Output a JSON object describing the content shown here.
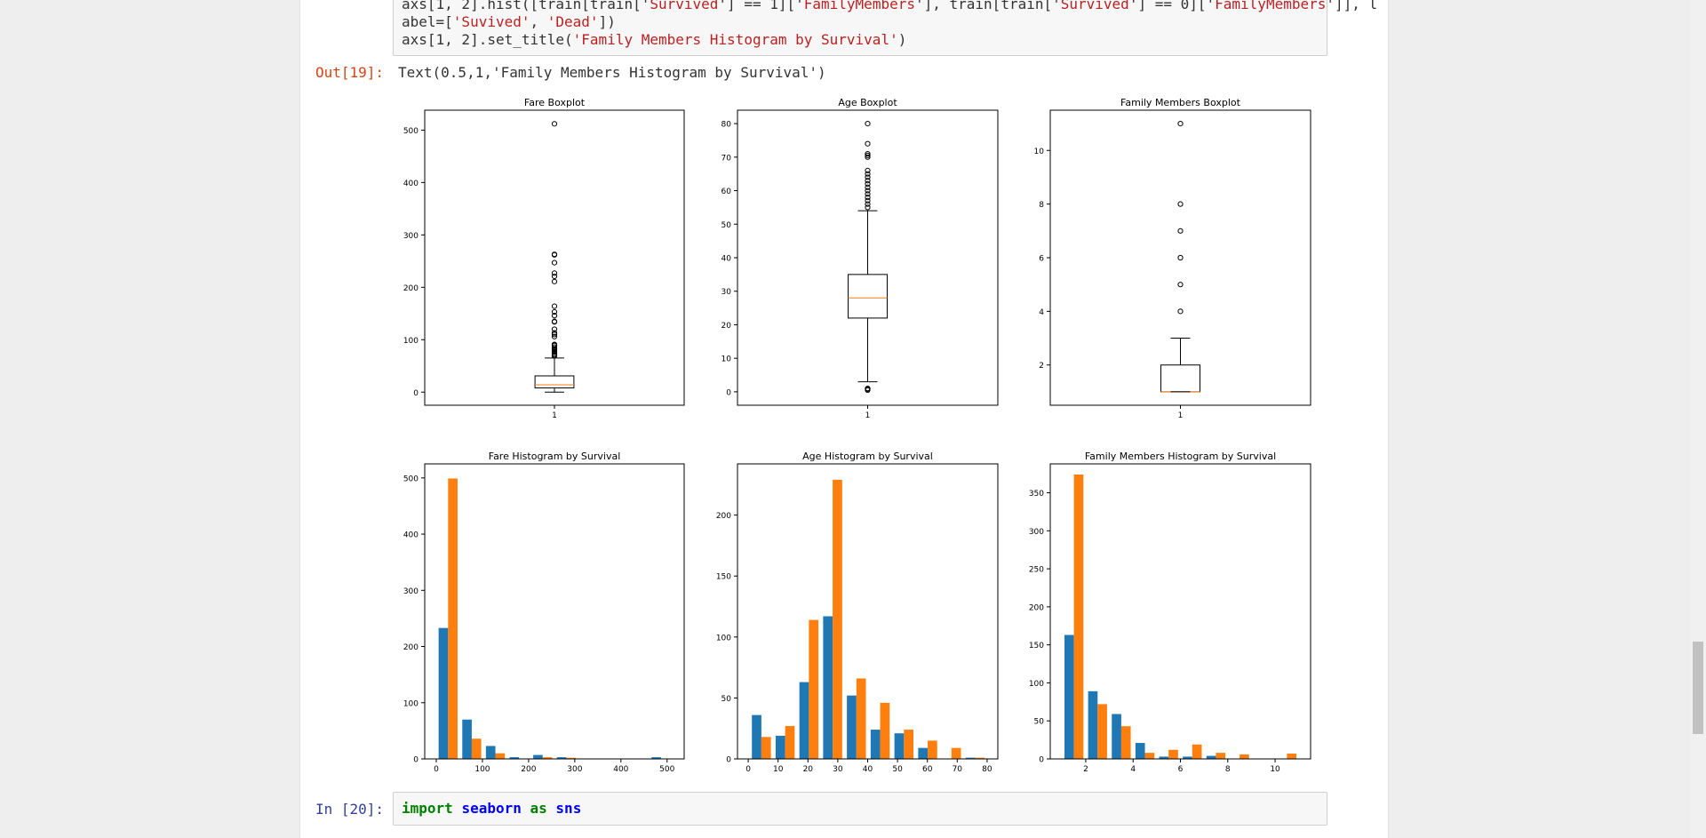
{
  "cell19": {
    "code_lines": [
      {
        "parts": [
          [
            "axs[1, 2].hist([train[train['",
            "plain"
          ],
          [
            "Survived",
            "str"
          ],
          [
            "'] == 1]['",
            "plain"
          ],
          [
            "FamilyMembers",
            "str"
          ],
          [
            "'], train[train['",
            "plain"
          ],
          [
            "Survived",
            "str"
          ],
          [
            "'] == 0]['",
            "plain"
          ],
          [
            "FamilyMembers",
            "str"
          ],
          [
            "']], l",
            "plain"
          ]
        ]
      },
      {
        "parts": [
          [
            "abel=[",
            "plain"
          ],
          [
            "'Suvived'",
            "str"
          ],
          [
            ", ",
            "plain"
          ],
          [
            "'Dead'",
            "str"
          ],
          [
            "])",
            "plain"
          ]
        ]
      },
      {
        "parts": [
          [
            "axs[1, 2].set_title(",
            "plain"
          ],
          [
            "'Family Members Histogram by Survival'",
            "str"
          ],
          [
            ")",
            "plain"
          ]
        ]
      }
    ],
    "out_prompt": "Out[19]:",
    "out_text": "Text(0.5,1,'Family Members Histogram by Survival')"
  },
  "cell20": {
    "in_prompt": "In  [20]:",
    "code_parts": [
      [
        "import",
        "kw"
      ],
      [
        " ",
        "plain"
      ],
      [
        "seaborn",
        "mod"
      ],
      [
        " ",
        "plain"
      ],
      [
        "as",
        "kw"
      ],
      [
        " ",
        "plain"
      ],
      [
        "sns",
        "mod"
      ]
    ]
  },
  "colors": {
    "survived": "#1f77b4",
    "dead": "#ff7f0e",
    "median": "#ff7f0e"
  },
  "chart_data": [
    {
      "type": "boxplot",
      "title": "Fare Boxplot",
      "xticks": [
        "1"
      ],
      "yticks": [
        0,
        100,
        200,
        300,
        400,
        500
      ],
      "ylim": [
        -25,
        538
      ],
      "box": {
        "whisker_low": 0,
        "q1": 8,
        "median": 14,
        "q3": 31,
        "whisker_high": 65
      },
      "outliers": [
        512,
        263,
        262,
        247,
        227,
        221,
        211,
        164,
        153,
        146,
        135,
        134,
        120,
        113,
        110,
        106,
        91,
        90,
        89,
        86,
        83,
        82,
        80,
        78,
        77,
        76,
        73,
        71,
        69
      ]
    },
    {
      "type": "boxplot",
      "title": "Age Boxplot",
      "xticks": [
        "1"
      ],
      "yticks": [
        0,
        10,
        20,
        30,
        40,
        50,
        60,
        70,
        80
      ],
      "ylim": [
        -4,
        84
      ],
      "box": {
        "whisker_low": 3,
        "q1": 22,
        "median": 28,
        "q3": 35,
        "whisker_high": 54
      },
      "outliers": [
        80,
        74,
        71,
        70.5,
        70,
        66,
        65,
        64,
        63,
        62,
        61,
        60,
        59,
        58,
        57,
        56,
        55,
        1,
        0.9,
        0.8,
        0.5
      ]
    },
    {
      "type": "boxplot",
      "title": "Family Members Boxplot",
      "xticks": [
        "1"
      ],
      "yticks": [
        2,
        4,
        6,
        8,
        10
      ],
      "ylim": [
        0.5,
        11.5
      ],
      "box": {
        "whisker_low": 1,
        "q1": 1,
        "median": 1,
        "q3": 2,
        "whisker_high": 3
      },
      "outliers": [
        11,
        8,
        7,
        6,
        5,
        4
      ]
    },
    {
      "type": "bar",
      "title": "Fare Histogram by Survival",
      "xlim": [
        -25,
        537
      ],
      "xticks": [
        0,
        100,
        200,
        300,
        400,
        500
      ],
      "yticks": [
        0,
        100,
        200,
        300,
        400,
        500
      ],
      "ylim": [
        0,
        525
      ],
      "bin_edges": [
        0,
        51.23,
        102.47,
        153.7,
        204.93,
        256.16,
        307.4,
        358.63,
        409.86,
        461.1,
        512.33
      ],
      "series": [
        {
          "name": "Suvived",
          "values": [
            233,
            70,
            23,
            3,
            7,
            3,
            0,
            0,
            0,
            3
          ]
        },
        {
          "name": "Dead",
          "values": [
            499,
            36,
            10,
            0,
            3,
            2,
            0,
            0,
            0,
            0
          ]
        }
      ]
    },
    {
      "type": "bar",
      "title": "Age Histogram by Survival",
      "xlim": [
        -3.6,
        83.6
      ],
      "xticks": [
        0,
        10,
        20,
        30,
        40,
        50,
        60,
        70,
        80
      ],
      "yticks": [
        0,
        50,
        100,
        150,
        200
      ],
      "ylim": [
        0,
        242
      ],
      "bin_edges": [
        0.42,
        8.38,
        16.34,
        24.29,
        32.25,
        40.21,
        48.17,
        56.13,
        64.08,
        72.04,
        80
      ],
      "series": [
        {
          "name": "Suvived",
          "values": [
            36,
            19,
            63,
            117,
            52,
            24,
            21,
            9,
            0,
            1
          ]
        },
        {
          "name": "Dead",
          "values": [
            18,
            27,
            114,
            229,
            66,
            46,
            24,
            15,
            9,
            1
          ]
        }
      ]
    },
    {
      "type": "bar",
      "title": "Family Members Histogram by Survival",
      "xlim": [
        0.5,
        11.5
      ],
      "xticks": [
        2,
        4,
        6,
        8,
        10
      ],
      "yticks": [
        0,
        50,
        100,
        150,
        200,
        250,
        300,
        350
      ],
      "ylim": [
        0,
        388
      ],
      "bin_edges": [
        1,
        2,
        3,
        4,
        5,
        6,
        7,
        8,
        9,
        10,
        11
      ],
      "series": [
        {
          "name": "Suvived",
          "values": [
            163,
            89,
            59,
            21,
            3,
            3,
            4,
            0,
            0,
            0
          ]
        },
        {
          "name": "Dead",
          "values": [
            374,
            72,
            43,
            8,
            12,
            19,
            8,
            6,
            0,
            7
          ]
        }
      ]
    }
  ]
}
